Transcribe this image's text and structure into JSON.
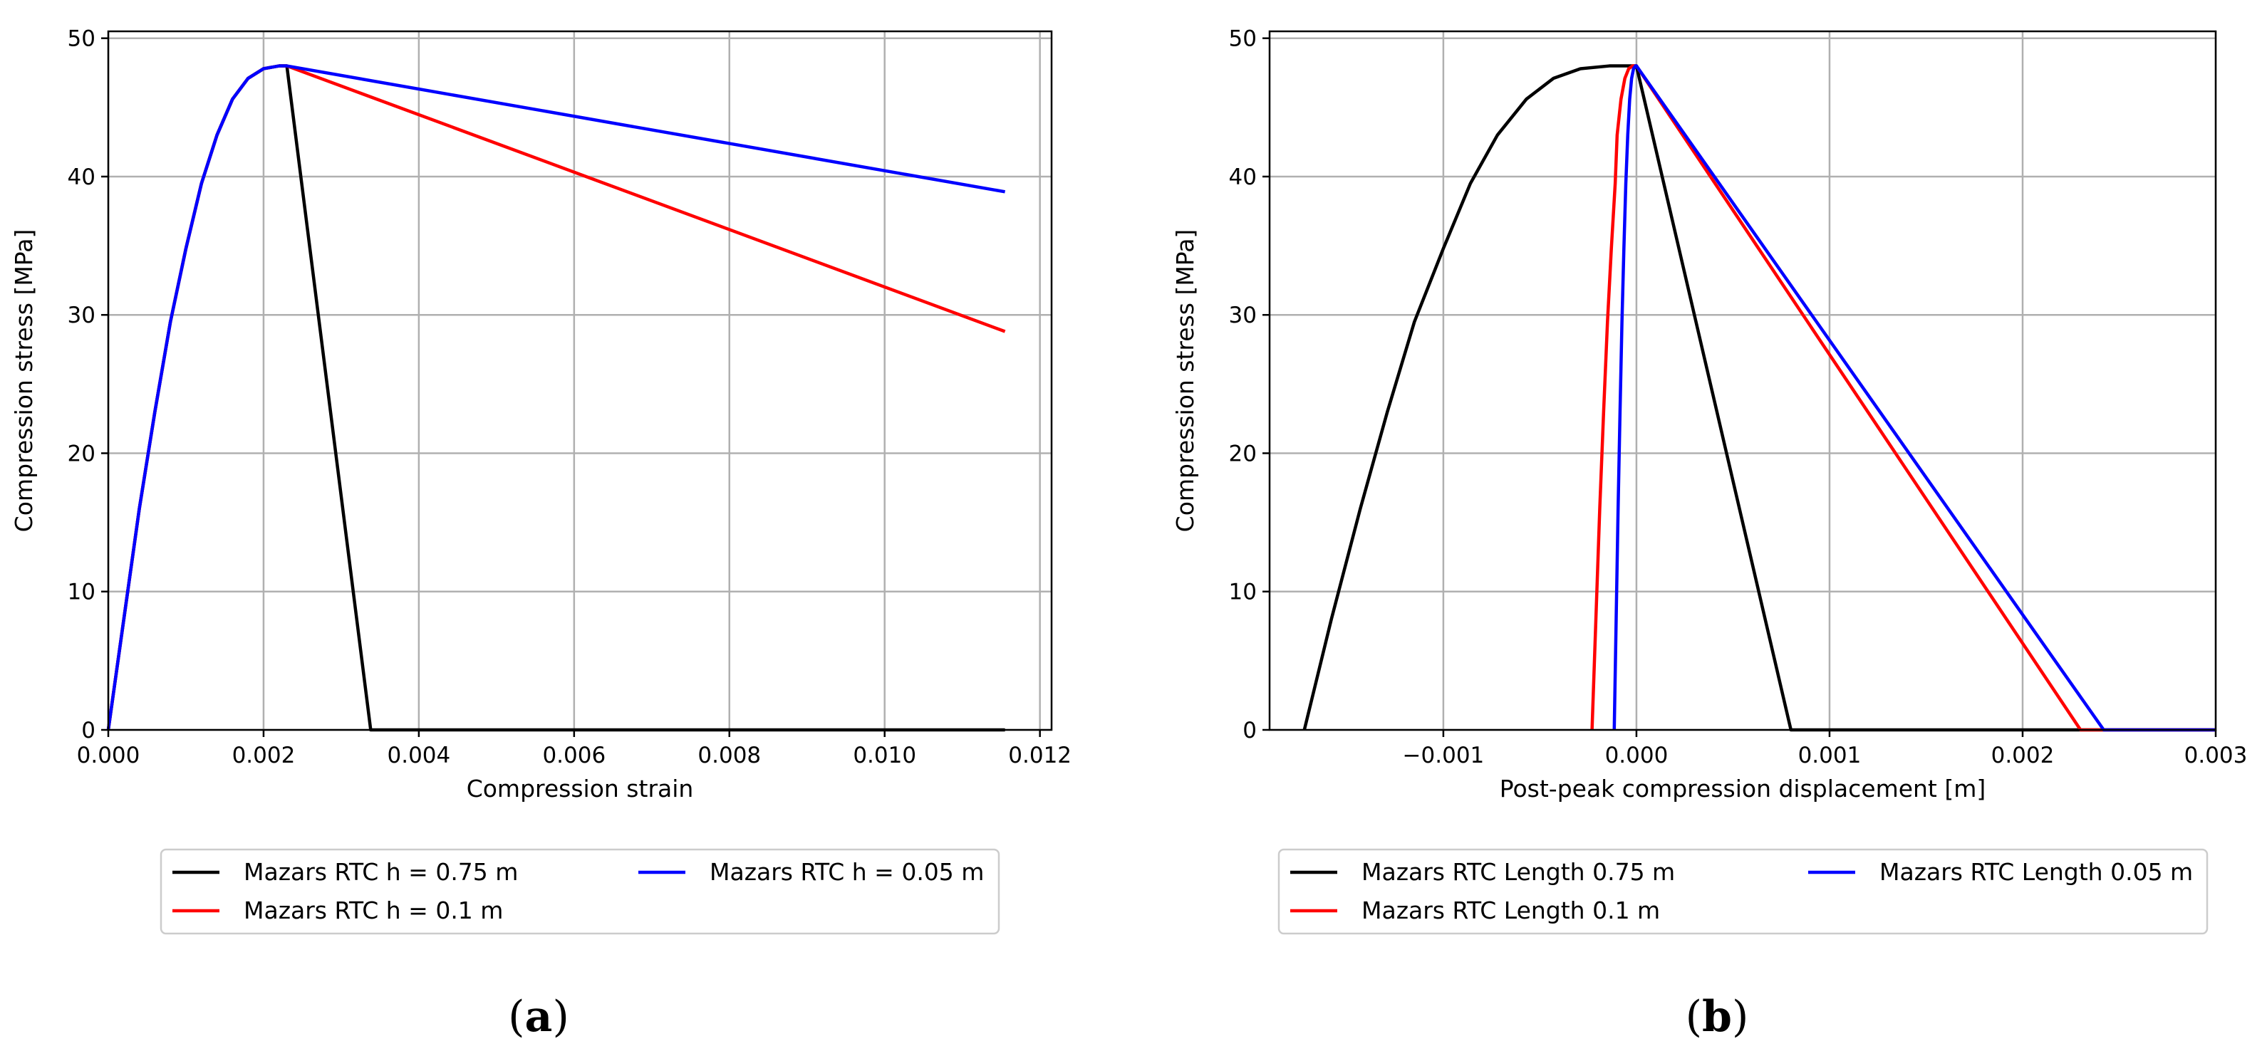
{
  "colors": {
    "black": "#000000",
    "red": "#ff0000",
    "blue": "#0000ff",
    "grid": "#b0b0b0",
    "legend_border": "#cccccc"
  },
  "chart_data": [
    {
      "panel": "a",
      "type": "line",
      "xlabel": "Compression strain",
      "ylabel": "Compression stress [MPa]",
      "xlim": [
        0.0,
        0.01215
      ],
      "ylim": [
        0,
        50.5
      ],
      "xticks": [
        0.0,
        0.002,
        0.004,
        0.006,
        0.008,
        0.01,
        0.012
      ],
      "xtick_labels": [
        "0.000",
        "0.002",
        "0.004",
        "0.006",
        "0.008",
        "0.010",
        "0.012"
      ],
      "yticks": [
        0,
        10,
        20,
        30,
        40,
        50
      ],
      "ytick_labels": [
        "0",
        "10",
        "20",
        "30",
        "40",
        "50"
      ],
      "grid": true,
      "legend_position": "below",
      "legend_columns": 2,
      "series": [
        {
          "name": "Mazars RTC h = 0.75 m",
          "color": "#000000",
          "x": [
            0.0,
            0.0002,
            0.0004,
            0.0006,
            0.0008,
            0.001,
            0.0012,
            0.0014,
            0.0016,
            0.0018,
            0.002,
            0.0022,
            0.0023,
            0.00338,
            0.0034,
            0.01155
          ],
          "y": [
            0.0,
            8.0,
            16.0,
            23.0,
            29.5,
            34.8,
            39.5,
            43.0,
            45.6,
            47.1,
            47.8,
            48.0,
            48.0,
            0.0,
            0.0,
            0.0
          ]
        },
        {
          "name": "Mazars RTC h = 0.1 m",
          "color": "#ff0000",
          "x": [
            0.0,
            0.0002,
            0.0004,
            0.0006,
            0.0008,
            0.001,
            0.0012,
            0.0014,
            0.0016,
            0.0018,
            0.002,
            0.0022,
            0.0023,
            0.01155
          ],
          "y": [
            0.0,
            8.0,
            16.0,
            23.0,
            29.5,
            34.8,
            39.5,
            43.0,
            45.6,
            47.1,
            47.8,
            48.0,
            48.0,
            28.8
          ]
        },
        {
          "name": "Mazars RTC h = 0.05 m",
          "color": "#0000ff",
          "x": [
            0.0,
            0.0002,
            0.0004,
            0.0006,
            0.0008,
            0.001,
            0.0012,
            0.0014,
            0.0016,
            0.0018,
            0.002,
            0.0022,
            0.0023,
            0.01155
          ],
          "y": [
            0.0,
            8.0,
            16.0,
            23.0,
            29.5,
            34.8,
            39.5,
            43.0,
            45.6,
            47.1,
            47.8,
            48.0,
            48.0,
            38.9
          ]
        }
      ],
      "caption": "(a)"
    },
    {
      "panel": "b",
      "type": "line",
      "xlabel": "Post-peak compression displacement [m]",
      "ylabel": "Compression stress [MPa]",
      "xlim": [
        -0.0019,
        0.003
      ],
      "ylim": [
        0,
        50.5
      ],
      "xticks": [
        -0.001,
        0.0,
        0.001,
        0.002,
        0.003
      ],
      "xtick_labels": [
        "−0.001",
        "0.000",
        "0.001",
        "0.002",
        "0.003"
      ],
      "yticks": [
        0,
        10,
        20,
        30,
        40,
        50
      ],
      "ytick_labels": [
        "0",
        "10",
        "20",
        "30",
        "40",
        "50"
      ],
      "grid": true,
      "legend_position": "below",
      "legend_columns": 2,
      "series": [
        {
          "name": "Mazars RTC Length 0.75 m",
          "color": "#000000",
          "x": [
            -0.00172,
            -0.00158,
            -0.00143,
            -0.00129,
            -0.00115,
            -0.001,
            -0.00086,
            -0.00072,
            -0.00057,
            -0.00043,
            -0.00029,
            -0.00014,
            0.0,
            0.0008,
            0.00082,
            0.003
          ],
          "y": [
            0.0,
            8.0,
            16.0,
            23.0,
            29.5,
            34.8,
            39.5,
            43.0,
            45.6,
            47.1,
            47.8,
            48.0,
            48.0,
            0.0,
            0.0,
            0.0
          ]
        },
        {
          "name": "Mazars RTC Length 0.1 m",
          "color": "#ff0000",
          "x": [
            -0.00023,
            -0.00021,
            -0.00019,
            -0.00017,
            -0.00015,
            -0.00013,
            -0.00011,
            -0.0001,
            -8e-05,
            -6e-05,
            -4e-05,
            -2e-05,
            0.0,
            0.0023,
            0.00232,
            0.003
          ],
          "y": [
            0.0,
            8.0,
            16.0,
            23.0,
            29.5,
            34.8,
            39.5,
            43.0,
            45.6,
            47.1,
            47.8,
            48.0,
            48.0,
            0.0,
            0.0,
            0.0
          ]
        },
        {
          "name": "Mazars RTC Length 0.05 m",
          "color": "#0000ff",
          "x": [
            -0.000115,
            -0.000105,
            -9.5e-05,
            -8.5e-05,
            -7.5e-05,
            -6.5e-05,
            -5.5e-05,
            -4.5e-05,
            -3.5e-05,
            -2.5e-05,
            -1.5e-05,
            -5e-06,
            0.0,
            0.00242,
            0.00244,
            0.003
          ],
          "y": [
            0.0,
            8.0,
            16.0,
            23.0,
            29.5,
            34.8,
            39.5,
            43.0,
            45.6,
            47.1,
            47.8,
            48.0,
            48.0,
            0.0,
            0.0,
            0.0
          ]
        }
      ],
      "caption": "(b)"
    }
  ]
}
